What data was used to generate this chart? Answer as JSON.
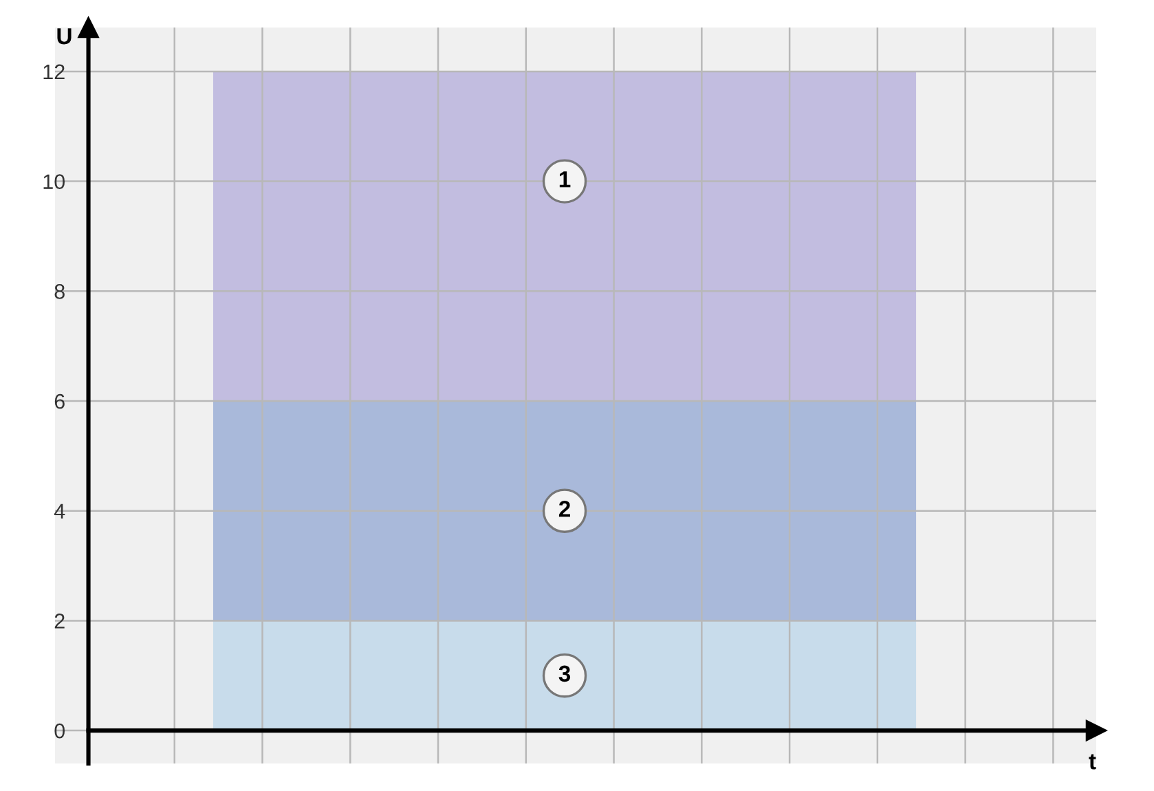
{
  "chart_data": {
    "type": "bar",
    "stacked": true,
    "categories": [
      null
    ],
    "series": [
      {
        "color": "#c8dceb",
        "values": [
          2
        ]
      },
      {
        "color": "#a9b9da",
        "values": [
          4
        ]
      },
      {
        "color": "#c2bde0",
        "values": [
          6
        ]
      }
    ],
    "ylim": [
      -0.6,
      12.8
    ],
    "yticks": [
      0,
      2,
      4,
      6,
      8,
      10,
      12
    ],
    "xlabel": "t",
    "ylabel": "U",
    "grid": true,
    "tick_labels": "y",
    "annotations": [
      {
        "text": "1",
        "y": 10
      },
      {
        "text": "2",
        "y": 4
      },
      {
        "text": "3",
        "y": 1
      }
    ]
  }
}
